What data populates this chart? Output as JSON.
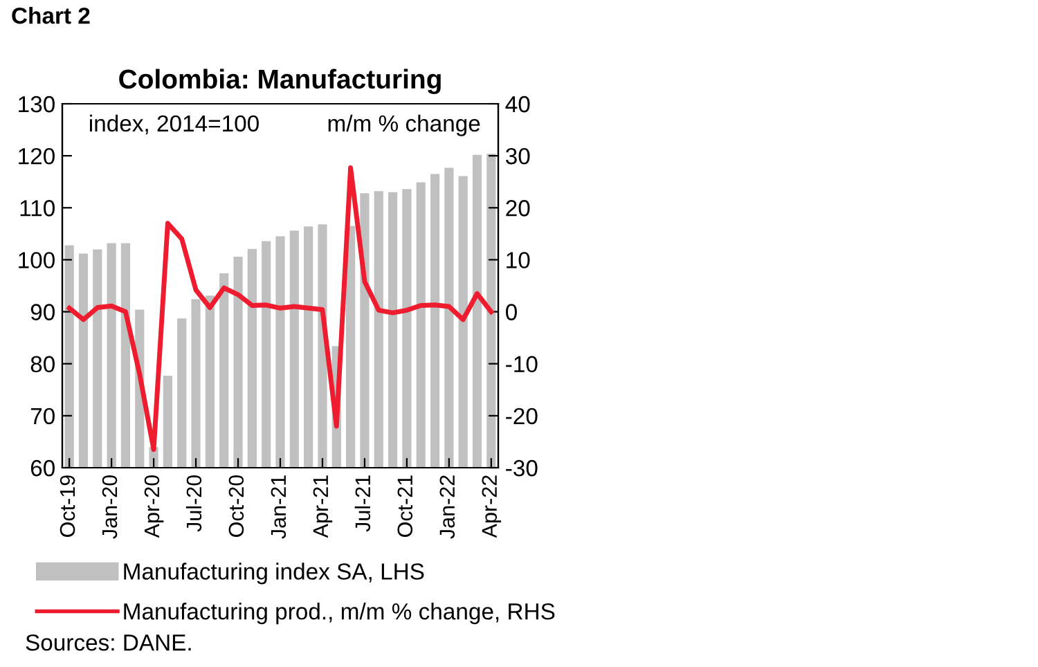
{
  "chart_data": {
    "type": "bar",
    "title": "Colombia: Manufacturing",
    "ylabel": "index, 2014=100",
    "y2label": "m/m % change",
    "annotations": [
      "Chart 2",
      "Sources: DANE."
    ],
    "categories": [
      "Oct-19",
      null,
      null,
      "Jan-20",
      null,
      null,
      "Apr-20",
      null,
      null,
      "Jul-20",
      null,
      null,
      "Oct-20",
      null,
      null,
      "Jan-21",
      null,
      null,
      "Apr-21",
      null,
      null,
      "Jul-21",
      null,
      null,
      "Oct-21",
      null,
      null,
      "Jan-22",
      null,
      null,
      "Apr-22"
    ],
    "series": [
      {
        "name": "Manufacturing index SA, LHS",
        "color": "#c0c0c0",
        "values": [
          102.8,
          101.2,
          102.0,
          103.2,
          103.2,
          90.4,
          64,
          77.7,
          88.7,
          92.4,
          93.1,
          97.4,
          100.6,
          102.1,
          103.6,
          104.5,
          105.6,
          106.4,
          106.8,
          83.4,
          106.5,
          112.8,
          113.2,
          113.0,
          113.6,
          114.9,
          116.5,
          117.7,
          116.1,
          120.2,
          120.4
        ]
      },
      {
        "name": "Manufacturing prod., m/m % change, RHS",
        "type": "line",
        "axis": "y2",
        "color": "#ee1c2e",
        "values": [
          0.7,
          -1.5,
          0.8,
          1.1,
          0,
          -12,
          -26.5,
          17,
          14,
          4.2,
          0.8,
          4.6,
          3.3,
          1.2,
          1.3,
          0.7,
          1.0,
          0.7,
          0.4,
          -22,
          27.7,
          5.8,
          0.3,
          -0.2,
          0.3,
          1.2,
          1.3,
          1.0,
          -1.5,
          3.5,
          0
        ]
      }
    ],
    "ylim": [
      60,
      130
    ],
    "yticks": [
      60,
      70,
      80,
      90,
      100,
      110,
      120,
      130
    ],
    "y2lim": [
      -30,
      40
    ],
    "y2ticks": [
      -30,
      -20,
      -10,
      0,
      10,
      20,
      30,
      40
    ],
    "legend": "bottom left",
    "grid": false,
    "marker": "none",
    "line_style": "solid"
  }
}
